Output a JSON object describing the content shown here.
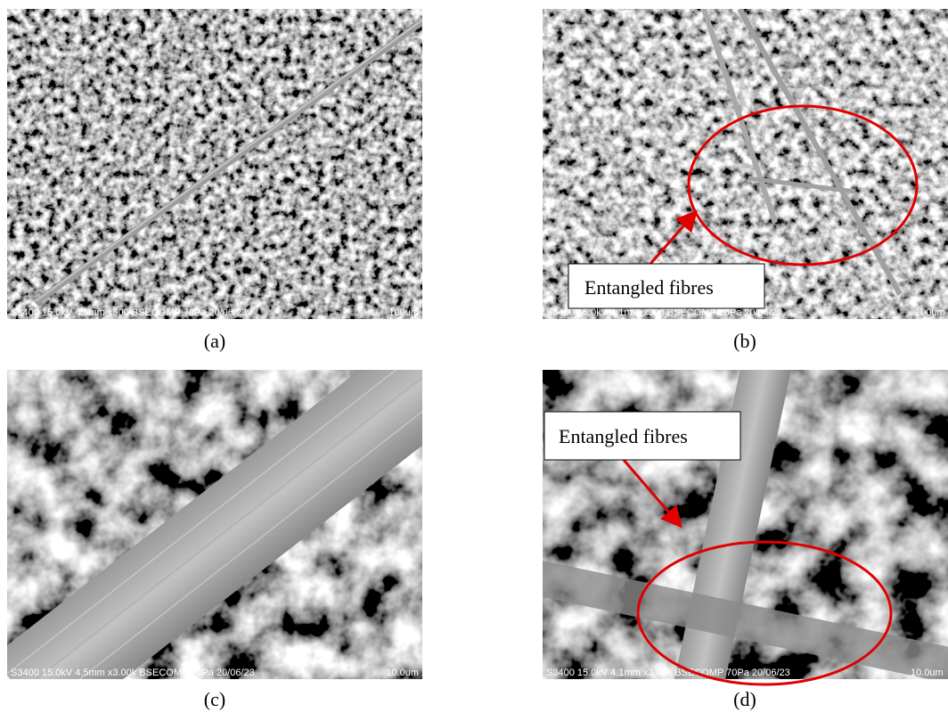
{
  "panels": [
    {
      "caption": "(a)",
      "info": "S3400 15.0kV 4.5mm x300 BSECOMP 70Pa 20/06/23",
      "scale": "100um"
    },
    {
      "caption": "(b)",
      "info": "S3400 15.0kV 4.1mm x300 BSECOMP 70Pa 20/06/23",
      "scale": "100um",
      "annotation": "Entangled fibres"
    },
    {
      "caption": "(c)",
      "info": "S3400 15.0kV 4.5mm x3.00k BSECOMP 70Pa 20/06/23",
      "scale": "10.0um"
    },
    {
      "caption": "(d)",
      "info": "S3400 15.0kV 4.1mm x3.00k BSECOMP 70Pa 20/06/23",
      "scale": "10.0um",
      "annotation": "Entangled fibres"
    }
  ]
}
